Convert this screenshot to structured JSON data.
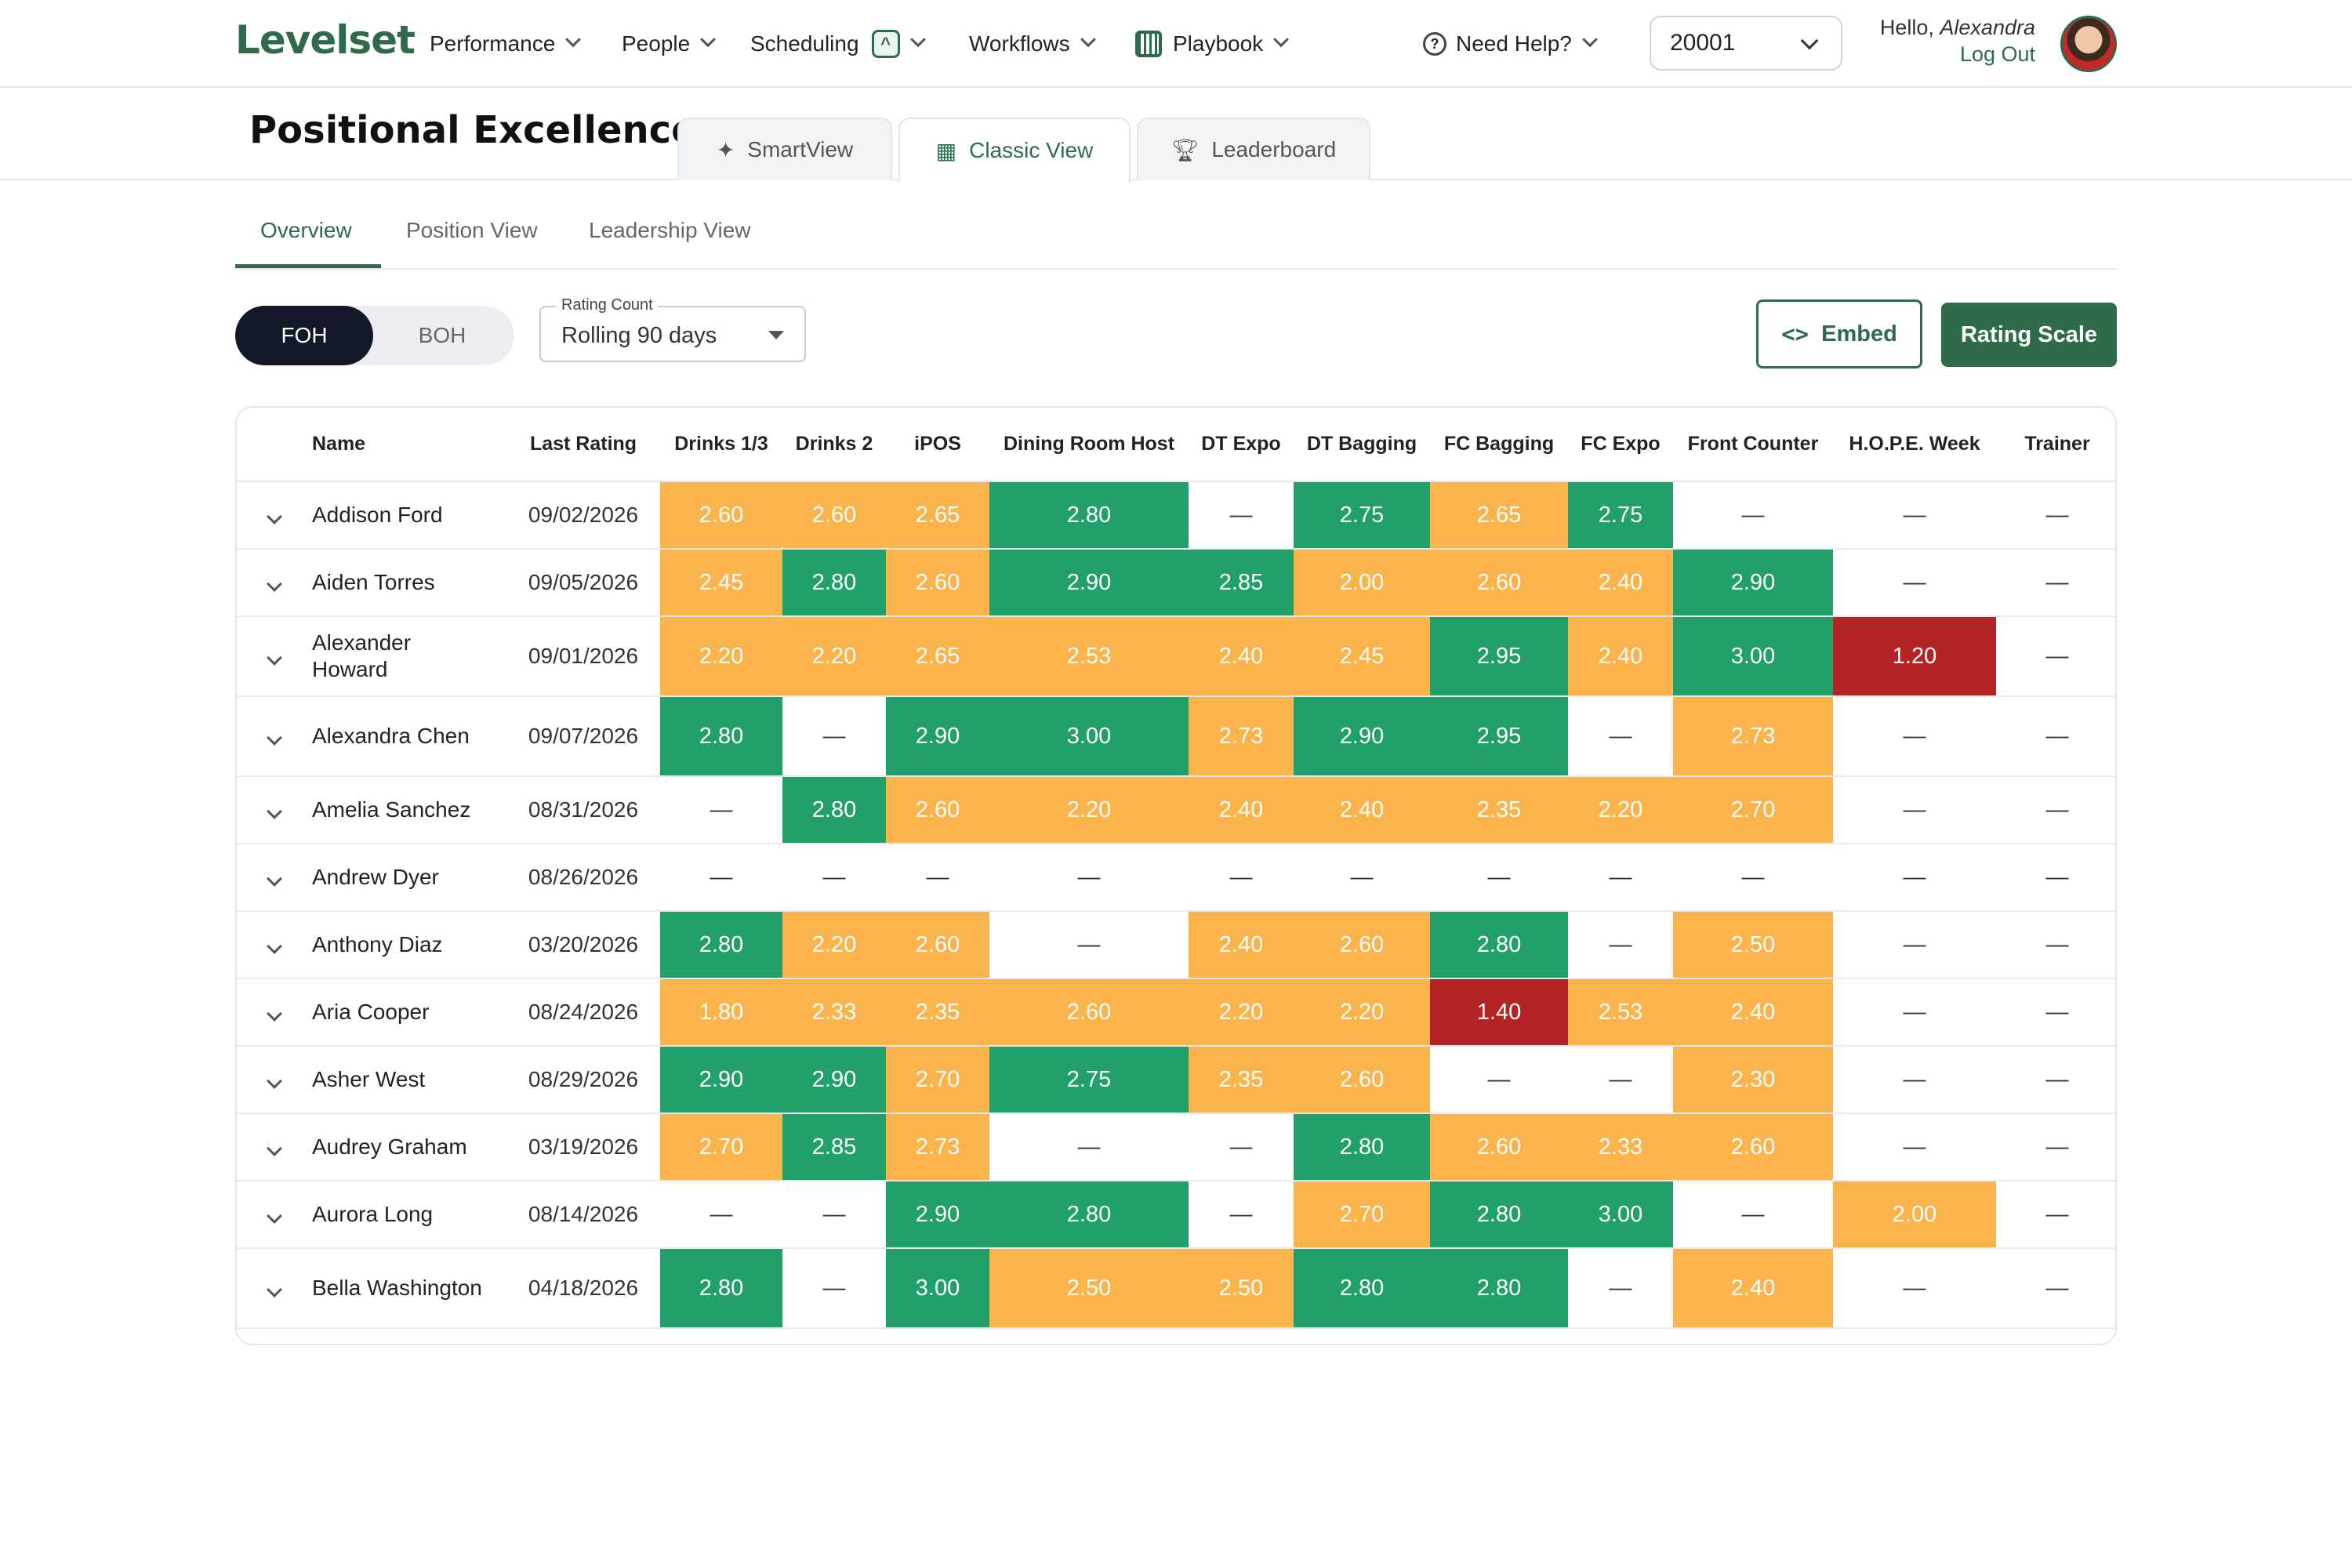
{
  "nav": {
    "logo": "Levelset",
    "items": [
      {
        "label": "Performance"
      },
      {
        "label": "People"
      },
      {
        "label": "Scheduling"
      },
      {
        "label": "Workflows"
      },
      {
        "label": "Playbook"
      }
    ],
    "help": "Need Help?",
    "store": "20001",
    "hello_prefix": "Hello,",
    "user_name": "Alexandra",
    "logout": "Log Out"
  },
  "page": {
    "title": "Positional Excellence",
    "view_tabs": [
      {
        "label": "SmartView",
        "icon": "sparkle-icon"
      },
      {
        "label": "Classic View",
        "icon": "table-icon"
      },
      {
        "label": "Leaderboard",
        "icon": "trophy-icon"
      }
    ],
    "sub_tabs": [
      "Overview",
      "Position View",
      "Leadership View"
    ]
  },
  "controls": {
    "foh": "FOH",
    "boh": "BOH",
    "rating_count_label": "Rating Count",
    "rating_count_value": "Rolling 90 days",
    "embed": "Embed",
    "rating_scale": "Rating Scale"
  },
  "colors": {
    "green": "#21a06a",
    "yellow": "#fbb44b",
    "red": "#b42424",
    "brand": "#2e6b4a"
  },
  "table": {
    "headers": [
      "Name",
      "Last Rating",
      "Drinks 1/3",
      "Drinks 2",
      "iPOS",
      "Dining Room Host",
      "DT Expo",
      "DT Bagging",
      "FC Bagging",
      "FC Expo",
      "Front Counter",
      "H.O.P.E. Week",
      "Trainer"
    ],
    "rows": [
      {
        "name": "Addison Ford",
        "date": "09/02/2026",
        "cells": [
          [
            "2.60",
            "y"
          ],
          [
            "2.60",
            "y"
          ],
          [
            "2.65",
            "y"
          ],
          [
            "2.80",
            "g"
          ],
          [
            "—",
            "e"
          ],
          [
            "2.75",
            "g"
          ],
          [
            "2.65",
            "y"
          ],
          [
            "2.75",
            "g"
          ],
          [
            "—",
            "e"
          ],
          [
            "—",
            "e"
          ],
          [
            "—",
            "e"
          ]
        ]
      },
      {
        "name": "Aiden Torres",
        "date": "09/05/2026",
        "cells": [
          [
            "2.45",
            "y"
          ],
          [
            "2.80",
            "g"
          ],
          [
            "2.60",
            "y"
          ],
          [
            "2.90",
            "g"
          ],
          [
            "2.85",
            "g"
          ],
          [
            "2.00",
            "y"
          ],
          [
            "2.60",
            "y"
          ],
          [
            "2.40",
            "y"
          ],
          [
            "2.90",
            "g"
          ],
          [
            "—",
            "e"
          ],
          [
            "—",
            "e"
          ]
        ]
      },
      {
        "name": "Alexander Howard",
        "date": "09/01/2026",
        "cells": [
          [
            "2.20",
            "y"
          ],
          [
            "2.20",
            "y"
          ],
          [
            "2.65",
            "y"
          ],
          [
            "2.53",
            "y"
          ],
          [
            "2.40",
            "y"
          ],
          [
            "2.45",
            "y"
          ],
          [
            "2.95",
            "g"
          ],
          [
            "2.40",
            "y"
          ],
          [
            "3.00",
            "g"
          ],
          [
            "1.20",
            "r"
          ],
          [
            "—",
            "e"
          ]
        ]
      },
      {
        "name": "Alexandra Chen",
        "date": "09/07/2026",
        "cells": [
          [
            "2.80",
            "g"
          ],
          [
            "—",
            "e"
          ],
          [
            "2.90",
            "g"
          ],
          [
            "3.00",
            "g"
          ],
          [
            "2.73",
            "y"
          ],
          [
            "2.90",
            "g"
          ],
          [
            "2.95",
            "g"
          ],
          [
            "—",
            "e"
          ],
          [
            "2.73",
            "y"
          ],
          [
            "—",
            "e"
          ],
          [
            "—",
            "e"
          ]
        ]
      },
      {
        "name": "Amelia Sanchez",
        "date": "08/31/2026",
        "cells": [
          [
            "—",
            "e"
          ],
          [
            "2.80",
            "g"
          ],
          [
            "2.60",
            "y"
          ],
          [
            "2.20",
            "y"
          ],
          [
            "2.40",
            "y"
          ],
          [
            "2.40",
            "y"
          ],
          [
            "2.35",
            "y"
          ],
          [
            "2.20",
            "y"
          ],
          [
            "2.70",
            "y"
          ],
          [
            "—",
            "e"
          ],
          [
            "—",
            "e"
          ]
        ]
      },
      {
        "name": "Andrew Dyer",
        "date": "08/26/2026",
        "cells": [
          [
            "—",
            "e"
          ],
          [
            "—",
            "e"
          ],
          [
            "—",
            "e"
          ],
          [
            "—",
            "e"
          ],
          [
            "—",
            "e"
          ],
          [
            "—",
            "e"
          ],
          [
            "—",
            "e"
          ],
          [
            "—",
            "e"
          ],
          [
            "—",
            "e"
          ],
          [
            "—",
            "e"
          ],
          [
            "—",
            "e"
          ]
        ]
      },
      {
        "name": "Anthony Diaz",
        "date": "03/20/2026",
        "cells": [
          [
            "2.80",
            "g"
          ],
          [
            "2.20",
            "y"
          ],
          [
            "2.60",
            "y"
          ],
          [
            "—",
            "e"
          ],
          [
            "2.40",
            "y"
          ],
          [
            "2.60",
            "y"
          ],
          [
            "2.80",
            "g"
          ],
          [
            "—",
            "e"
          ],
          [
            "2.50",
            "y"
          ],
          [
            "—",
            "e"
          ],
          [
            "—",
            "e"
          ]
        ]
      },
      {
        "name": "Aria Cooper",
        "date": "08/24/2026",
        "cells": [
          [
            "1.80",
            "y"
          ],
          [
            "2.33",
            "y"
          ],
          [
            "2.35",
            "y"
          ],
          [
            "2.60",
            "y"
          ],
          [
            "2.20",
            "y"
          ],
          [
            "2.20",
            "y"
          ],
          [
            "1.40",
            "r"
          ],
          [
            "2.53",
            "y"
          ],
          [
            "2.40",
            "y"
          ],
          [
            "—",
            "e"
          ],
          [
            "—",
            "e"
          ]
        ]
      },
      {
        "name": "Asher West",
        "date": "08/29/2026",
        "cells": [
          [
            "2.90",
            "g"
          ],
          [
            "2.90",
            "g"
          ],
          [
            "2.70",
            "y"
          ],
          [
            "2.75",
            "g"
          ],
          [
            "2.35",
            "y"
          ],
          [
            "2.60",
            "y"
          ],
          [
            "—",
            "e"
          ],
          [
            "—",
            "e"
          ],
          [
            "2.30",
            "y"
          ],
          [
            "—",
            "e"
          ],
          [
            "—",
            "e"
          ]
        ]
      },
      {
        "name": "Audrey Graham",
        "date": "03/19/2026",
        "cells": [
          [
            "2.70",
            "y"
          ],
          [
            "2.85",
            "g"
          ],
          [
            "2.73",
            "y"
          ],
          [
            "—",
            "e"
          ],
          [
            "—",
            "e"
          ],
          [
            "2.80",
            "g"
          ],
          [
            "2.60",
            "y"
          ],
          [
            "2.33",
            "y"
          ],
          [
            "2.60",
            "y"
          ],
          [
            "—",
            "e"
          ],
          [
            "—",
            "e"
          ]
        ]
      },
      {
        "name": "Aurora Long",
        "date": "08/14/2026",
        "cells": [
          [
            "—",
            "e"
          ],
          [
            "—",
            "e"
          ],
          [
            "2.90",
            "g"
          ],
          [
            "2.80",
            "g"
          ],
          [
            "—",
            "e"
          ],
          [
            "2.70",
            "y"
          ],
          [
            "2.80",
            "g"
          ],
          [
            "3.00",
            "g"
          ],
          [
            "—",
            "e"
          ],
          [
            "2.00",
            "y"
          ],
          [
            "—",
            "e"
          ]
        ]
      },
      {
        "name": "Bella Washington",
        "date": "04/18/2026",
        "cells": [
          [
            "2.80",
            "g"
          ],
          [
            "—",
            "e"
          ],
          [
            "3.00",
            "g"
          ],
          [
            "2.50",
            "y"
          ],
          [
            "2.50",
            "y"
          ],
          [
            "2.80",
            "g"
          ],
          [
            "2.80",
            "g"
          ],
          [
            "—",
            "e"
          ],
          [
            "2.40",
            "y"
          ],
          [
            "—",
            "e"
          ],
          [
            "—",
            "e"
          ]
        ]
      }
    ]
  }
}
